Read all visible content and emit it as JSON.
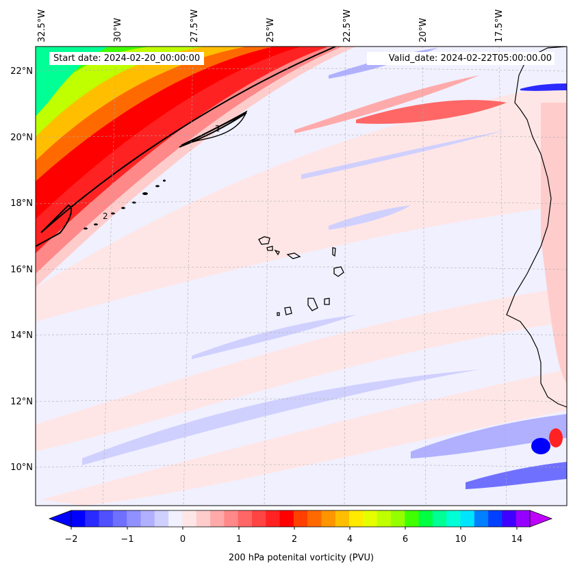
{
  "map": {
    "start_date": "Start date: 2024-02-20_00:00:00",
    "valid_date": "Valid_date: 2024-02-22T05:00:00.00",
    "lon_labels": [
      "32.5°W",
      "30°W",
      "27.5°W",
      "25°W",
      "22.5°W",
      "20°W",
      "17.5°W"
    ],
    "lat_labels": [
      "22°N",
      "20°N",
      "18°N",
      "16°N",
      "14°N",
      "12°N",
      "10°N"
    ],
    "contour_label": "2"
  },
  "colorbar": {
    "title": "200 hPa potenital vorticity (PVU)",
    "ticks": [
      "−2",
      "−1",
      "0",
      "1",
      "2",
      "4",
      "6",
      "10",
      "14"
    ],
    "colors": [
      "#0000ff",
      "#2a2aff",
      "#5050ff",
      "#7070ff",
      "#9090ff",
      "#b0b0ff",
      "#d0d0ff",
      "#f0f0ff",
      "#ffe6e6",
      "#ffcccc",
      "#ffaaaa",
      "#ff8888",
      "#ff6666",
      "#ff4444",
      "#ff2222",
      "#ff0000",
      "#ff4000",
      "#ff6a00",
      "#ff9500",
      "#ffbf00",
      "#ffea00",
      "#e5ff00",
      "#bfff00",
      "#95ff00",
      "#40ff00",
      "#00ff40",
      "#00ff95",
      "#00ffd5",
      "#00e5ff",
      "#0080ff",
      "#0040ff",
      "#4000ff",
      "#9500ff"
    ],
    "under_color": "#0000ff",
    "over_color": "#c000ff"
  }
}
